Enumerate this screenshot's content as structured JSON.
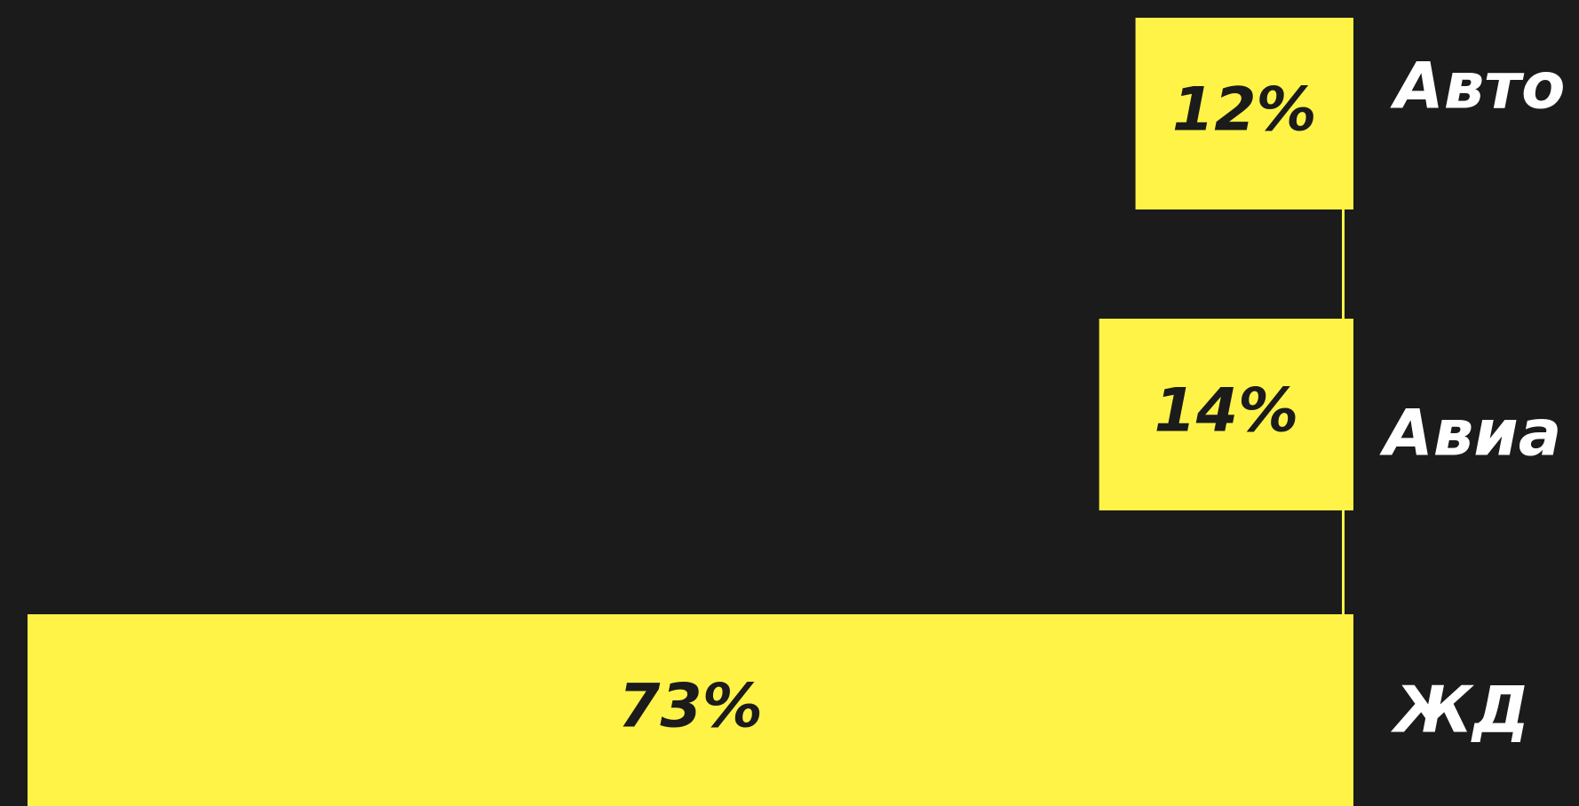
{
  "chart_data": {
    "type": "bar",
    "orientation": "horizontal",
    "categories": [
      "Авто",
      "Авиа",
      "ЖД"
    ],
    "values": [
      12,
      14,
      73
    ],
    "value_labels": [
      "12%",
      "14%",
      "73%"
    ],
    "color": "#fff347"
  }
}
